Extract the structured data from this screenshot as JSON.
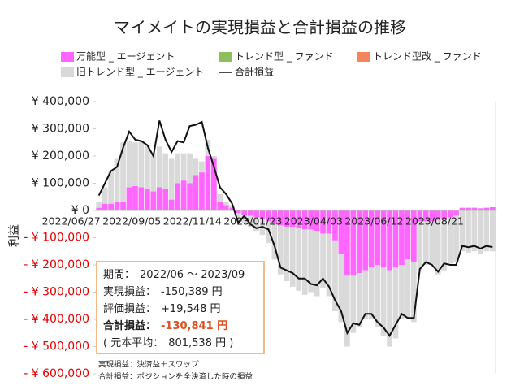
{
  "chart_data": {
    "type": "bar",
    "title": "マイメイトの実現損益と合計損益の推移",
    "y_label": "利益",
    "categories": [
      "2022/06/27",
      null,
      null,
      null,
      null,
      null,
      null,
      null,
      null,
      null,
      "2022/09/05",
      null,
      null,
      null,
      null,
      null,
      null,
      null,
      null,
      null,
      "2022/11/14",
      null,
      null,
      null,
      null,
      null,
      null,
      null,
      null,
      null,
      "2023/01/23",
      null,
      null,
      null,
      null,
      null,
      null,
      null,
      null,
      null,
      "2023/04/03",
      null,
      null,
      null,
      null,
      null,
      null,
      null,
      null,
      null,
      "2023/06/12",
      null,
      null,
      null,
      null,
      null,
      null,
      null,
      null,
      null,
      "2023/08/21",
      null,
      null,
      null,
      null,
      null
    ],
    "series": [
      {
        "name": "万能型 _ エージェント",
        "type": "bar",
        "color": "#ff66ff",
        "values": [
          10000,
          25000,
          25000,
          30000,
          30000,
          85000,
          90000,
          85000,
          80000,
          70000,
          85000,
          80000,
          40000,
          100000,
          110000,
          100000,
          130000,
          140000,
          200000,
          190000,
          30000,
          20000,
          10000,
          -10000,
          -15000,
          -20000,
          -25000,
          -30000,
          -40000,
          -50000,
          -55000,
          -60000,
          -60000,
          -65000,
          -70000,
          -70000,
          -75000,
          -85000,
          -85000,
          -110000,
          -160000,
          -240000,
          -240000,
          -230000,
          -220000,
          -210000,
          -200000,
          -210000,
          -220000,
          -210000,
          -200000,
          -180000,
          -190000,
          -40000,
          -40000,
          -40000,
          -35000,
          -30000,
          -25000,
          -20000,
          10000,
          10000,
          10000,
          8000,
          10000,
          12000
        ]
      },
      {
        "name": "トレンド型 _ ファンド",
        "type": "bar",
        "color": "#8fbf5a",
        "values": [
          0,
          0,
          0,
          0,
          0,
          0,
          0,
          0,
          0,
          0,
          0,
          0,
          0,
          0,
          0,
          0,
          0,
          0,
          0,
          0,
          0,
          0,
          0,
          0,
          0,
          0,
          0,
          0,
          0,
          0,
          0,
          0,
          0,
          0,
          0,
          0,
          0,
          0,
          0,
          0,
          0,
          0,
          0,
          0,
          0,
          0,
          0,
          0,
          0,
          0,
          0,
          0,
          0,
          0,
          0,
          0,
          0,
          0,
          0,
          0,
          0,
          0,
          0,
          0,
          0,
          0
        ]
      },
      {
        "name": "トレンド型改 _ ファンド",
        "type": "bar",
        "color": "#f4845f",
        "values": [
          0,
          0,
          0,
          0,
          0,
          0,
          0,
          0,
          0,
          0,
          0,
          0,
          0,
          0,
          0,
          0,
          0,
          0,
          0,
          0,
          0,
          0,
          0,
          0,
          0,
          0,
          0,
          0,
          0,
          0,
          0,
          0,
          0,
          0,
          0,
          0,
          0,
          0,
          0,
          0,
          0,
          0,
          0,
          0,
          0,
          0,
          0,
          0,
          0,
          0,
          0,
          0,
          0,
          0,
          0,
          0,
          0,
          0,
          0,
          0,
          0,
          0,
          0,
          0,
          0,
          0
        ]
      },
      {
        "name": "旧トレンド型 _ エージェント",
        "type": "bar",
        "color": "#d9d9d9",
        "values": [
          20000,
          60000,
          120000,
          160000,
          220000,
          170000,
          160000,
          170000,
          160000,
          140000,
          150000,
          130000,
          150000,
          110000,
          100000,
          110000,
          60000,
          40000,
          60000,
          10000,
          30000,
          10000,
          10000,
          -30000,
          -30000,
          -40000,
          -50000,
          -60000,
          -80000,
          -130000,
          -180000,
          -200000,
          -220000,
          -230000,
          -240000,
          -230000,
          -240000,
          -200000,
          -230000,
          -260000,
          -250000,
          -260000,
          -210000,
          -200000,
          -180000,
          -190000,
          -230000,
          -250000,
          -280000,
          -260000,
          -200000,
          -220000,
          -220000,
          -180000,
          -160000,
          -160000,
          -200000,
          -190000,
          -170000,
          -170000,
          -150000,
          -155000,
          -150000,
          -160000,
          -150000,
          -150000
        ]
      },
      {
        "name": "合計損益",
        "type": "line",
        "color": "#111111",
        "values": [
          55000,
          100000,
          145000,
          160000,
          230000,
          290000,
          260000,
          255000,
          240000,
          200000,
          330000,
          260000,
          215000,
          255000,
          250000,
          310000,
          315000,
          325000,
          230000,
          160000,
          85000,
          60000,
          25000,
          -45000,
          -20000,
          -50000,
          -65000,
          -60000,
          -70000,
          -130000,
          -210000,
          -220000,
          -230000,
          -250000,
          -250000,
          -270000,
          -275000,
          -250000,
          -280000,
          -330000,
          -370000,
          -450000,
          -415000,
          -420000,
          -380000,
          -380000,
          -410000,
          -430000,
          -460000,
          -420000,
          -380000,
          -395000,
          -395000,
          -215000,
          -190000,
          -200000,
          -225000,
          -195000,
          -200000,
          -200000,
          -130000,
          -135000,
          -130000,
          -140000,
          -130000,
          -135000
        ]
      }
    ],
    "ylim": [
      -600000,
      400000
    ],
    "yticks": [
      {
        "value": -600000,
        "label": "- ¥ 600,000"
      },
      {
        "value": -500000,
        "label": "- ¥ 500,000"
      },
      {
        "value": -400000,
        "label": "- ¥ 400,000"
      },
      {
        "value": -300000,
        "label": "- ¥ 300,000"
      },
      {
        "value": -200000,
        "label": "- ¥ 200,000"
      },
      {
        "value": -100000,
        "label": "- ¥ 100,000"
      },
      {
        "value": 0,
        "label": "¥ 0"
      },
      {
        "value": 100000,
        "label": "¥ 100,000"
      },
      {
        "value": 200000,
        "label": "¥ 200,000"
      },
      {
        "value": 300000,
        "label": "¥ 300,000"
      },
      {
        "value": 400000,
        "label": "¥ 400,000"
      }
    ],
    "negative_tick_color": "#e00000",
    "grid": false,
    "annotations": [
      {
        "label": "期間：",
        "value": "2022/06 ～ 2023/09"
      },
      {
        "label": "実現損益：",
        "value": "-150,389 円"
      },
      {
        "label": "評価損益：",
        "value": "+19,548 円"
      },
      {
        "label": "合計損益：",
        "value": "-130,841 円",
        "highlight": "#e05020"
      },
      {
        "label": "( 元本平均：",
        "value": "801,538 円 )"
      }
    ],
    "notes": [
      "実現損益：決済益＋スワップ",
      "合計損益：ポジションを全決済した時の損益"
    ]
  }
}
